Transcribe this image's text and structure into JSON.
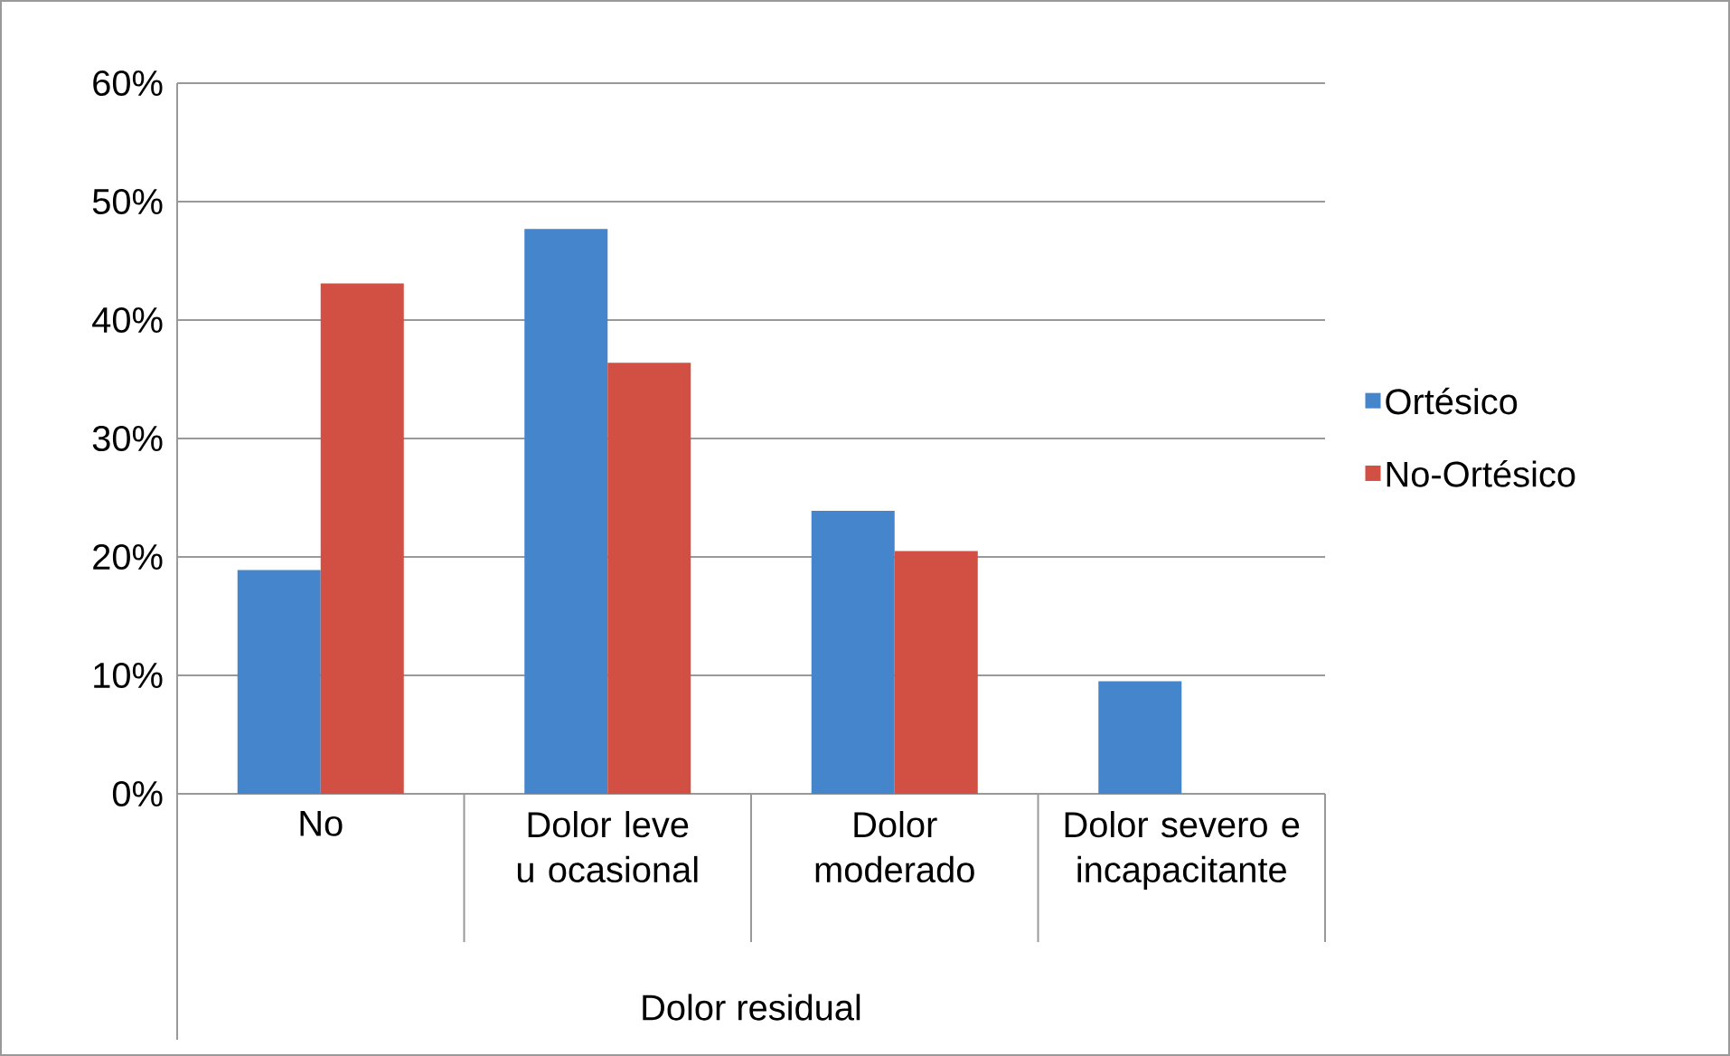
{
  "chart_data": {
    "type": "bar",
    "xlabel": "Dolor residual",
    "categories": [
      "No",
      "Dolor leve u ocasional",
      "Dolor moderado",
      "Dolor severo e incapacitante"
    ],
    "series": [
      {
        "name": "Ortésico",
        "color": "#4485cc",
        "values": [
          18.9,
          47.7,
          23.9,
          9.5
        ]
      },
      {
        "name": "No-Ortésico",
        "color": "#d24f43",
        "values": [
          43.1,
          36.4,
          20.5,
          null
        ]
      }
    ],
    "ylim": [
      0,
      60
    ],
    "yticks": [
      {
        "value": 0,
        "label": "0%"
      },
      {
        "value": 10,
        "label": "10%"
      },
      {
        "value": 20,
        "label": "20%"
      },
      {
        "value": 30,
        "label": "30%"
      },
      {
        "value": 40,
        "label": "40%"
      },
      {
        "value": 50,
        "label": "50%"
      },
      {
        "value": 60,
        "label": "60%"
      }
    ],
    "grid": "y",
    "legend": "right"
  }
}
